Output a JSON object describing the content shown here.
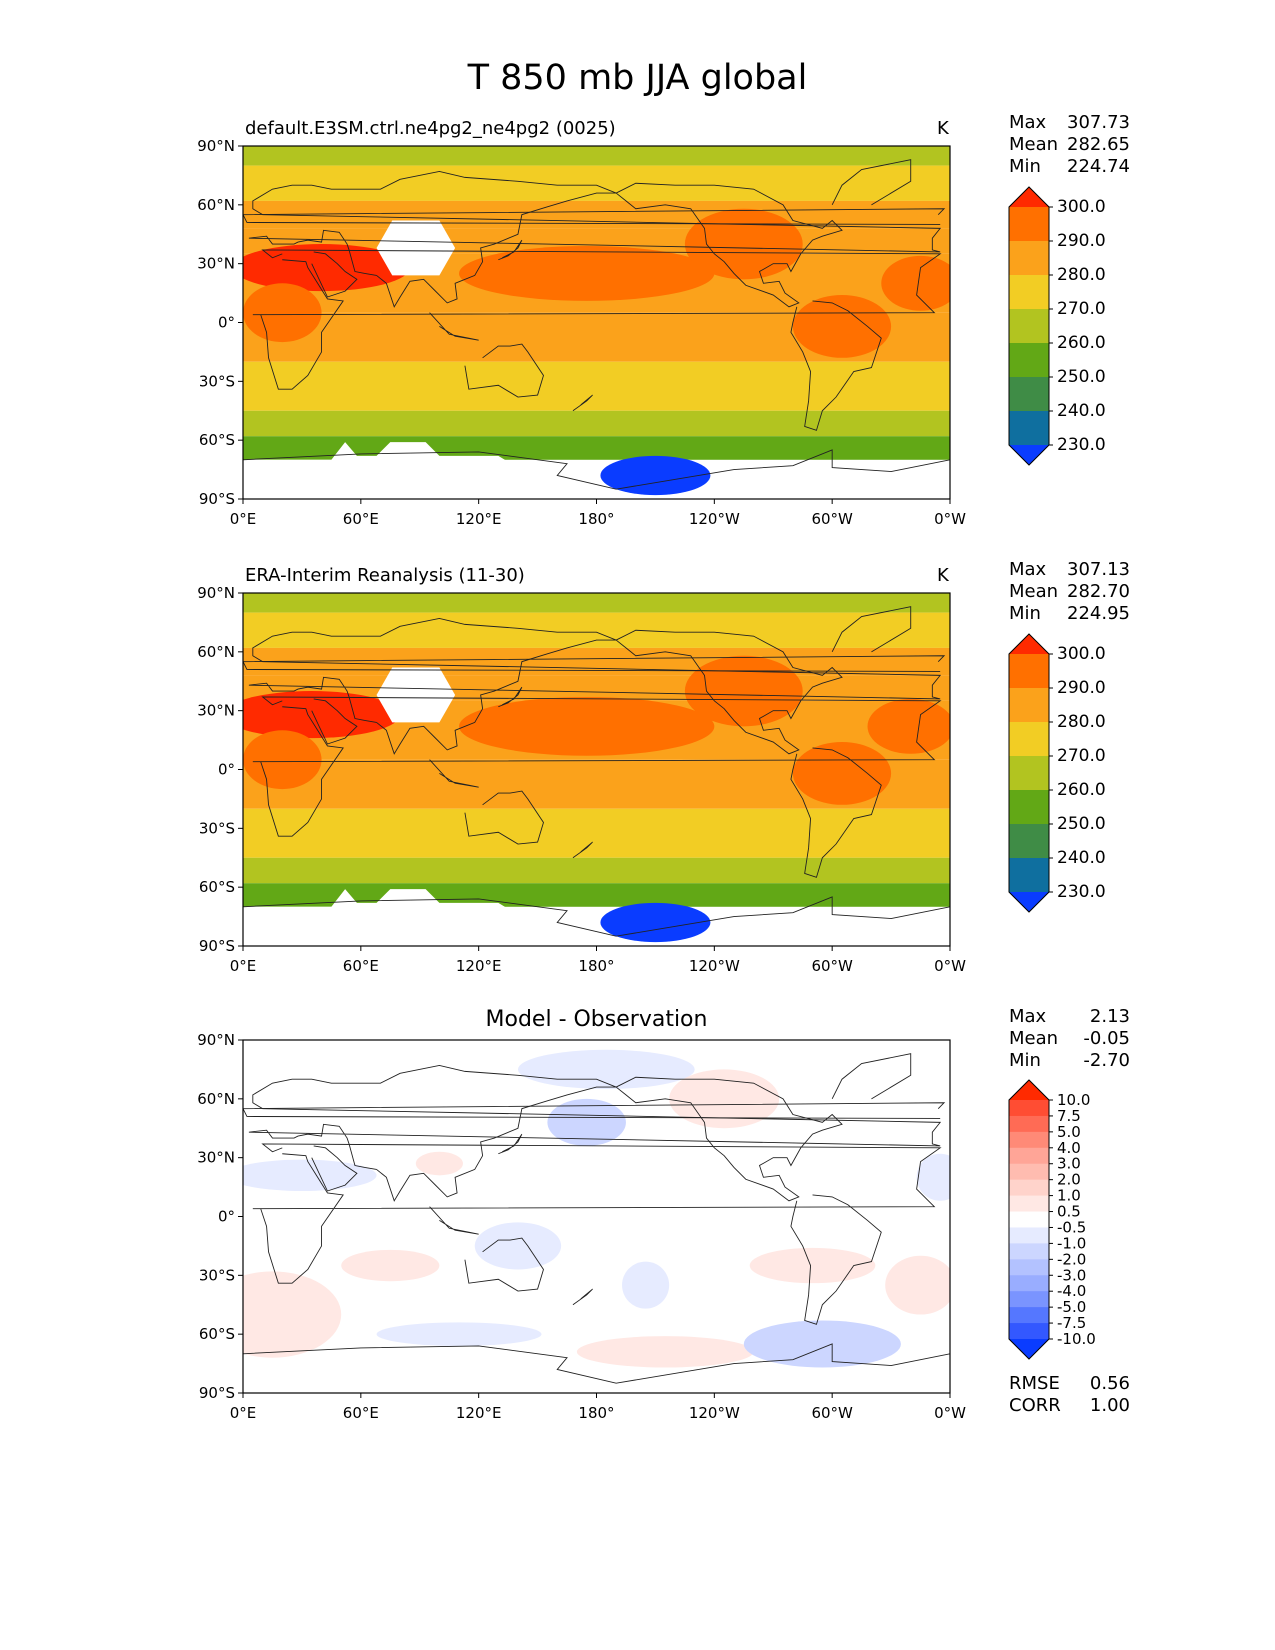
{
  "suptitle": "T 850 mb JJA global",
  "chart_data": [
    {
      "type": "heatmap",
      "title_left": "default.E3SM.ctrl.ne4pg2_ne4pg2 (0025)",
      "title_right": "K",
      "xticks": [
        "0°E",
        "60°E",
        "120°E",
        "180°",
        "120°W",
        "60°W",
        "0°W"
      ],
      "yticks": [
        "90°N",
        "60°N",
        "30°N",
        "0°",
        "30°S",
        "60°S",
        "90°S"
      ],
      "xlim": [
        0,
        360
      ],
      "ylim": [
        -90,
        90
      ],
      "stats": {
        "Max": "307.73",
        "Mean": "282.65",
        "Min": "224.74"
      },
      "colorbar": {
        "levels": [
          "300.0",
          "290.0",
          "280.0",
          "270.0",
          "260.0",
          "250.0",
          "240.0",
          "230.0"
        ],
        "colors": [
          "#ff2a00",
          "#ff7000",
          "#fba21b",
          "#f2cd24",
          "#b2c420",
          "#62a816",
          "#3f8c46",
          "#0f6f9f",
          "#0a3cff"
        ],
        "extend": "both"
      },
      "fill": {
        "levels": [
          230,
          240,
          250,
          260,
          270,
          280,
          290,
          300
        ],
        "bands_lat": [
          90,
          80,
          62,
          48,
          35,
          5,
          -20,
          -45,
          -58,
          -70
        ],
        "bands_value": [
          262,
          272,
          282,
          282,
          286,
          282,
          276,
          265,
          255
        ],
        "blobs": [
          {
            "lon": 40,
            "lat": 28,
            "rx": 45,
            "ry": 12,
            "value": 302
          },
          {
            "lon": 175,
            "lat": 25,
            "rx": 65,
            "ry": 14,
            "value": 291
          },
          {
            "lon": 255,
            "lat": 40,
            "rx": 30,
            "ry": 18,
            "value": 291
          },
          {
            "lon": 305,
            "lat": -2,
            "rx": 25,
            "ry": 16,
            "value": 291
          },
          {
            "lon": 20,
            "lat": 5,
            "rx": 20,
            "ry": 15,
            "value": 291
          },
          {
            "lon": 345,
            "lat": 20,
            "rx": 20,
            "ry": 14,
            "value": 291
          },
          {
            "lon": 210,
            "lat": -78,
            "rx": 28,
            "ry": 10,
            "value": 225
          }
        ]
      }
    },
    {
      "type": "heatmap",
      "title_left": "ERA-Interim Reanalysis (11-30)",
      "title_right": "K",
      "xticks": [
        "0°E",
        "60°E",
        "120°E",
        "180°",
        "120°W",
        "60°W",
        "0°W"
      ],
      "yticks": [
        "90°N",
        "60°N",
        "30°N",
        "0°",
        "30°S",
        "60°S",
        "90°S"
      ],
      "xlim": [
        0,
        360
      ],
      "ylim": [
        -90,
        90
      ],
      "stats": {
        "Max": "307.13",
        "Mean": "282.70",
        "Min": "224.95"
      },
      "colorbar": {
        "levels": [
          "300.0",
          "290.0",
          "280.0",
          "270.0",
          "260.0",
          "250.0",
          "240.0",
          "230.0"
        ],
        "colors": [
          "#ff2a00",
          "#ff7000",
          "#fba21b",
          "#f2cd24",
          "#b2c420",
          "#62a816",
          "#3f8c46",
          "#0f6f9f",
          "#0a3cff"
        ],
        "extend": "both"
      },
      "fill": {
        "levels": [
          230,
          240,
          250,
          260,
          270,
          280,
          290,
          300
        ],
        "bands_lat": [
          90,
          80,
          62,
          48,
          35,
          5,
          -20,
          -45,
          -58,
          -70
        ],
        "bands_value": [
          262,
          272,
          282,
          282,
          286,
          282,
          276,
          265,
          255
        ],
        "blobs": [
          {
            "lon": 35,
            "lat": 28,
            "rx": 45,
            "ry": 12,
            "value": 302
          },
          {
            "lon": 175,
            "lat": 22,
            "rx": 65,
            "ry": 15,
            "value": 291
          },
          {
            "lon": 255,
            "lat": 40,
            "rx": 30,
            "ry": 18,
            "value": 291
          },
          {
            "lon": 305,
            "lat": -2,
            "rx": 25,
            "ry": 16,
            "value": 291
          },
          {
            "lon": 20,
            "lat": 5,
            "rx": 20,
            "ry": 15,
            "value": 291
          },
          {
            "lon": 340,
            "lat": 22,
            "rx": 22,
            "ry": 14,
            "value": 291
          },
          {
            "lon": 210,
            "lat": -78,
            "rx": 28,
            "ry": 10,
            "value": 225
          }
        ]
      }
    },
    {
      "type": "heatmap",
      "title_center": "Model - Observation",
      "xticks": [
        "0°E",
        "60°E",
        "120°E",
        "180°",
        "120°W",
        "60°W",
        "0°W"
      ],
      "yticks": [
        "90°N",
        "60°N",
        "30°N",
        "0°",
        "30°S",
        "60°S",
        "90°S"
      ],
      "xlim": [
        0,
        360
      ],
      "ylim": [
        -90,
        90
      ],
      "stats": {
        "Max": "2.13",
        "Mean": "-0.05",
        "Min": "-2.70"
      },
      "metrics": {
        "RMSE": "0.56",
        "CORR": "1.00"
      },
      "colorbar": {
        "levels": [
          "10.0",
          "7.5",
          "5.0",
          "4.0",
          "3.0",
          "2.0",
          "1.0",
          "0.5",
          "-0.5",
          "-1.0",
          "-2.0",
          "-3.0",
          "-4.0",
          "-5.0",
          "-7.5",
          "-10.0"
        ],
        "colors": [
          "#ff2a00",
          "#ff4d33",
          "#ff6b55",
          "#ff8a77",
          "#ffa597",
          "#ffbcb0",
          "#ffd3cb",
          "#ffe8e4",
          "#ffffff",
          "#e6ebff",
          "#ccd6ff",
          "#b3c2ff",
          "#99adff",
          "#7a94ff",
          "#5577ff",
          "#3358ff",
          "#0a3cff"
        ],
        "extend": "both"
      },
      "fill": {
        "blobs": [
          {
            "lon": 30,
            "lat": 21,
            "rx": 38,
            "ry": 8,
            "value": -0.8
          },
          {
            "lon": 185,
            "lat": 75,
            "rx": 45,
            "ry": 10,
            "value": -0.7
          },
          {
            "lon": 175,
            "lat": 48,
            "rx": 20,
            "ry": 12,
            "value": -1.1
          },
          {
            "lon": 100,
            "lat": 27,
            "rx": 12,
            "ry": 6,
            "value": 0.7
          },
          {
            "lon": 245,
            "lat": 60,
            "rx": 28,
            "ry": 15,
            "value": 0.8
          },
          {
            "lon": 355,
            "lat": 20,
            "rx": 12,
            "ry": 12,
            "value": -0.8
          },
          {
            "lon": 140,
            "lat": -15,
            "rx": 22,
            "ry": 12,
            "value": -0.8
          },
          {
            "lon": 75,
            "lat": -25,
            "rx": 25,
            "ry": 8,
            "value": 0.7
          },
          {
            "lon": 205,
            "lat": -35,
            "rx": 12,
            "ry": 12,
            "value": -0.7
          },
          {
            "lon": 290,
            "lat": -25,
            "rx": 32,
            "ry": 9,
            "value": 0.8
          },
          {
            "lon": 345,
            "lat": -35,
            "rx": 18,
            "ry": 15,
            "value": 0.8
          },
          {
            "lon": 15,
            "lat": -50,
            "rx": 35,
            "ry": 22,
            "value": 0.6
          },
          {
            "lon": 110,
            "lat": -60,
            "rx": 42,
            "ry": 6,
            "value": -0.8
          },
          {
            "lon": 215,
            "lat": -69,
            "rx": 45,
            "ry": 8,
            "value": 0.8
          },
          {
            "lon": 295,
            "lat": -65,
            "rx": 40,
            "ry": 12,
            "value": -1.3
          }
        ]
      }
    }
  ]
}
